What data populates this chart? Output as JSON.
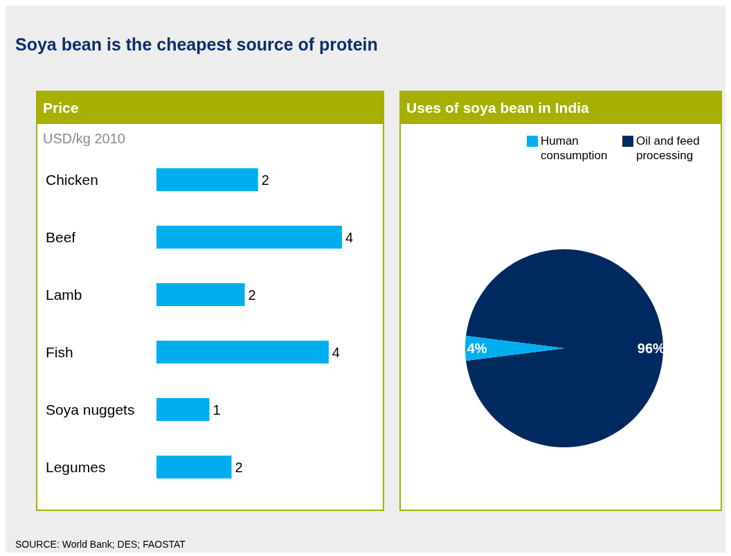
{
  "chart_data": [
    {
      "type": "bar",
      "orientation": "horizontal",
      "title": "Price",
      "xlabel": "USD/kg 2010",
      "categories": [
        "Chicken",
        "Beef",
        "Lamb",
        "Fish",
        "Soya nuggets",
        "Legumes"
      ],
      "values": [
        2.3,
        4.2,
        2.0,
        3.9,
        1.2,
        1.7
      ],
      "value_labels": [
        "2",
        "4",
        "2",
        "4",
        "1",
        "2"
      ],
      "color": "#00aeef",
      "annotations": [
        "Soya bean is the cheapest source of protein"
      ]
    },
    {
      "type": "pie",
      "title": "Uses of soya bean in India",
      "categories": [
        "Oil and feed processing",
        "Human consumption"
      ],
      "values": [
        96,
        4
      ],
      "colors": [
        "#002960",
        "#00aeef"
      ],
      "value_labels": [
        "96%",
        "4%"
      ],
      "legend": "top right",
      "annotations": [
        "SOURCE: World Bank; DES; FAOSTAT"
      ]
    }
  ]
}
